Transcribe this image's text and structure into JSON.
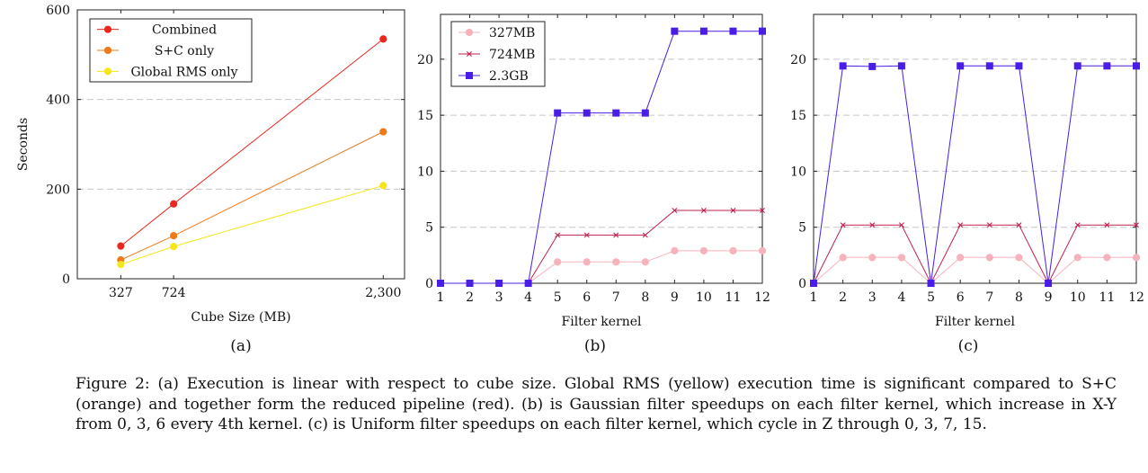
{
  "chart_data": [
    {
      "id": "a",
      "type": "line",
      "xlabel": "Cube Size (MB)",
      "ylabel": "Seconds",
      "x": [
        327,
        724,
        2300
      ],
      "xticks": [
        327,
        724,
        2300
      ],
      "xtick_labels": [
        "327",
        "724",
        "2,300"
      ],
      "yticks": [
        0,
        200,
        400,
        600
      ],
      "xlim": [
        0,
        2460
      ],
      "ylim": [
        0,
        600
      ],
      "grid": "horizontal-dashed",
      "legend": "top-left",
      "series": [
        {
          "name": "Combined",
          "color": "#e8281e",
          "marker": "circle",
          "values": [
            73,
            167,
            535
          ]
        },
        {
          "name": "S+C only",
          "color": "#ef7a1a",
          "marker": "circle",
          "values": [
            42,
            96,
            328
          ]
        },
        {
          "name": "Global RMS only",
          "color": "#f4e61a",
          "marker": "circle",
          "values": [
            32,
            72,
            208
          ]
        }
      ],
      "sublabel": "(a)"
    },
    {
      "id": "b",
      "type": "line",
      "xlabel": "Filter kernel",
      "ylabel": "",
      "x": [
        1,
        2,
        3,
        4,
        5,
        6,
        7,
        8,
        9,
        10,
        11,
        12
      ],
      "xticks": [
        1,
        2,
        3,
        4,
        5,
        6,
        7,
        8,
        9,
        10,
        11,
        12
      ],
      "xtick_labels": [
        "1",
        "2",
        "3",
        "4",
        "5",
        "6",
        "7",
        "8",
        "9",
        "10",
        "11",
        "12"
      ],
      "yticks": [
        0,
        5,
        10,
        15,
        20
      ],
      "xlim": [
        1,
        12
      ],
      "ylim": [
        0,
        24
      ],
      "grid": "horizontal-dashed",
      "legend": "top-left",
      "series": [
        {
          "name": "327MB",
          "color": "#f6b3bb",
          "marker": "circle",
          "values": [
            0,
            0,
            0,
            0,
            1.9,
            1.9,
            1.9,
            1.9,
            2.9,
            2.9,
            2.9,
            2.9
          ]
        },
        {
          "name": "724MB",
          "color": "#c2204e",
          "marker": "x",
          "values": [
            0,
            0,
            0,
            0,
            4.3,
            4.3,
            4.3,
            4.3,
            6.5,
            6.5,
            6.5,
            6.5
          ]
        },
        {
          "name": "2.3GB",
          "color": "#4a1de6",
          "marker": "square",
          "values": [
            0,
            0,
            0,
            0,
            15.2,
            15.2,
            15.2,
            15.2,
            22.5,
            22.5,
            22.5,
            22.5
          ]
        }
      ],
      "sublabel": "(b)"
    },
    {
      "id": "c",
      "type": "line",
      "xlabel": "Filter kernel",
      "ylabel": "",
      "x": [
        1,
        2,
        3,
        4,
        5,
        6,
        7,
        8,
        9,
        10,
        11,
        12
      ],
      "xticks": [
        1,
        2,
        3,
        4,
        5,
        6,
        7,
        8,
        9,
        10,
        11,
        12
      ],
      "xtick_labels": [
        "1",
        "2",
        "3",
        "4",
        "5",
        "6",
        "7",
        "8",
        "9",
        "10",
        "11",
        "12"
      ],
      "yticks": [
        0,
        5,
        10,
        15,
        20
      ],
      "xlim": [
        1,
        12
      ],
      "ylim": [
        0,
        24
      ],
      "grid": "horizontal-dashed",
      "legend": "none",
      "series": [
        {
          "color": "#f6b3bb",
          "marker": "circle",
          "values": [
            0,
            2.3,
            2.3,
            2.3,
            0,
            2.3,
            2.3,
            2.3,
            0,
            2.3,
            2.3,
            2.3
          ]
        },
        {
          "color": "#c2204e",
          "marker": "x",
          "values": [
            0,
            5.2,
            5.2,
            5.2,
            0,
            5.2,
            5.2,
            5.2,
            0,
            5.2,
            5.2,
            5.2
          ]
        },
        {
          "color": "#4a1de6",
          "marker": "square",
          "values": [
            0,
            19.4,
            19.35,
            19.4,
            0,
            19.4,
            19.4,
            19.4,
            0,
            19.4,
            19.4,
            19.4
          ]
        }
      ],
      "sublabel": "(c)"
    }
  ],
  "caption": "Figure 2: (a) Execution is linear with respect to cube size. Global RMS (yellow) execution time is significant compared to S+C (orange) and together form the reduced pipeline (red). (b) is Gaussian filter speedups on each filter kernel, which increase in X-Y from 0, 3, 6 every 4th kernel. (c) is Uniform filter speedups on each filter kernel, which cycle in Z through 0, 3, 7, 15."
}
